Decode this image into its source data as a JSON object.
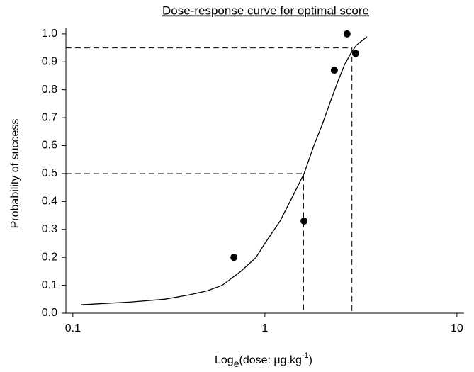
{
  "chart_data": {
    "type": "scatter",
    "title": "Dose-response curve for optimal score",
    "y_label": "Probability of success",
    "x_label": {
      "prefix": "Log",
      "sub": "e",
      "main": "(dose: μg.kg",
      "sup": "-1",
      "suffix": ")"
    },
    "x_log": true,
    "xlim": [
      0.092,
      10.9
    ],
    "xticks": [
      0.1,
      1,
      10
    ],
    "ylim": [
      0,
      1.02
    ],
    "yticks": [
      {
        "value": 0,
        "label": "0.0"
      },
      0.1,
      0.2,
      0.3,
      0.4,
      0.5,
      0.6,
      0.7,
      0.8,
      0.9,
      {
        "value": 1,
        "label": "1.0"
      }
    ],
    "points": {
      "color": "#000000",
      "x": [
        0.69,
        1.6,
        2.3,
        2.68,
        2.97
      ],
      "values": [
        0.2,
        0.33,
        0.87,
        1.0,
        0.93
      ]
    },
    "curve": {
      "color": "#000000",
      "x": [
        0.11,
        0.2,
        0.3,
        0.4,
        0.5,
        0.6,
        0.75,
        0.9,
        1.0,
        1.2,
        1.4,
        1.6,
        1.8,
        2.0,
        2.2,
        2.4,
        2.6,
        2.8,
        3.0,
        3.4
      ],
      "values": [
        0.03,
        0.04,
        0.05,
        0.065,
        0.08,
        0.1,
        0.15,
        0.2,
        0.25,
        0.33,
        0.42,
        0.5,
        0.6,
        0.68,
        0.76,
        0.83,
        0.89,
        0.93,
        0.96,
        0.99
      ]
    },
    "reference_lines": [
      {
        "x": 1.59,
        "y": 0.5
      },
      {
        "x": 2.84,
        "y": 0.95
      }
    ]
  }
}
